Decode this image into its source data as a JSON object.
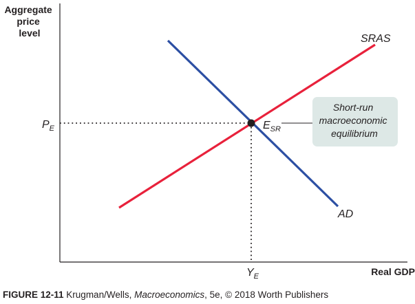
{
  "axes": {
    "y_title": [
      "Aggregate",
      "price",
      "level"
    ],
    "x_title": "Real GDP"
  },
  "curves": {
    "sras_label": "SRAS",
    "ad_label": "AD",
    "sras_color": "#e8213b",
    "ad_color": "#2c4fa3"
  },
  "equilibrium": {
    "price_main": "P",
    "price_sub": "E",
    "output_main": "Y",
    "output_sub": "E",
    "point_main": "E",
    "point_sub": "SR"
  },
  "callout": {
    "lines": [
      "Short-run",
      "macroeconomic",
      "equilibrium"
    ],
    "fill": "#dde8e6"
  },
  "caption": {
    "figure": "FIGURE 12-11",
    "authors": " Krugman/Wells, ",
    "book": "Macroeconomics",
    "rest": ", 5e, © 2018 Worth Publishers"
  }
}
